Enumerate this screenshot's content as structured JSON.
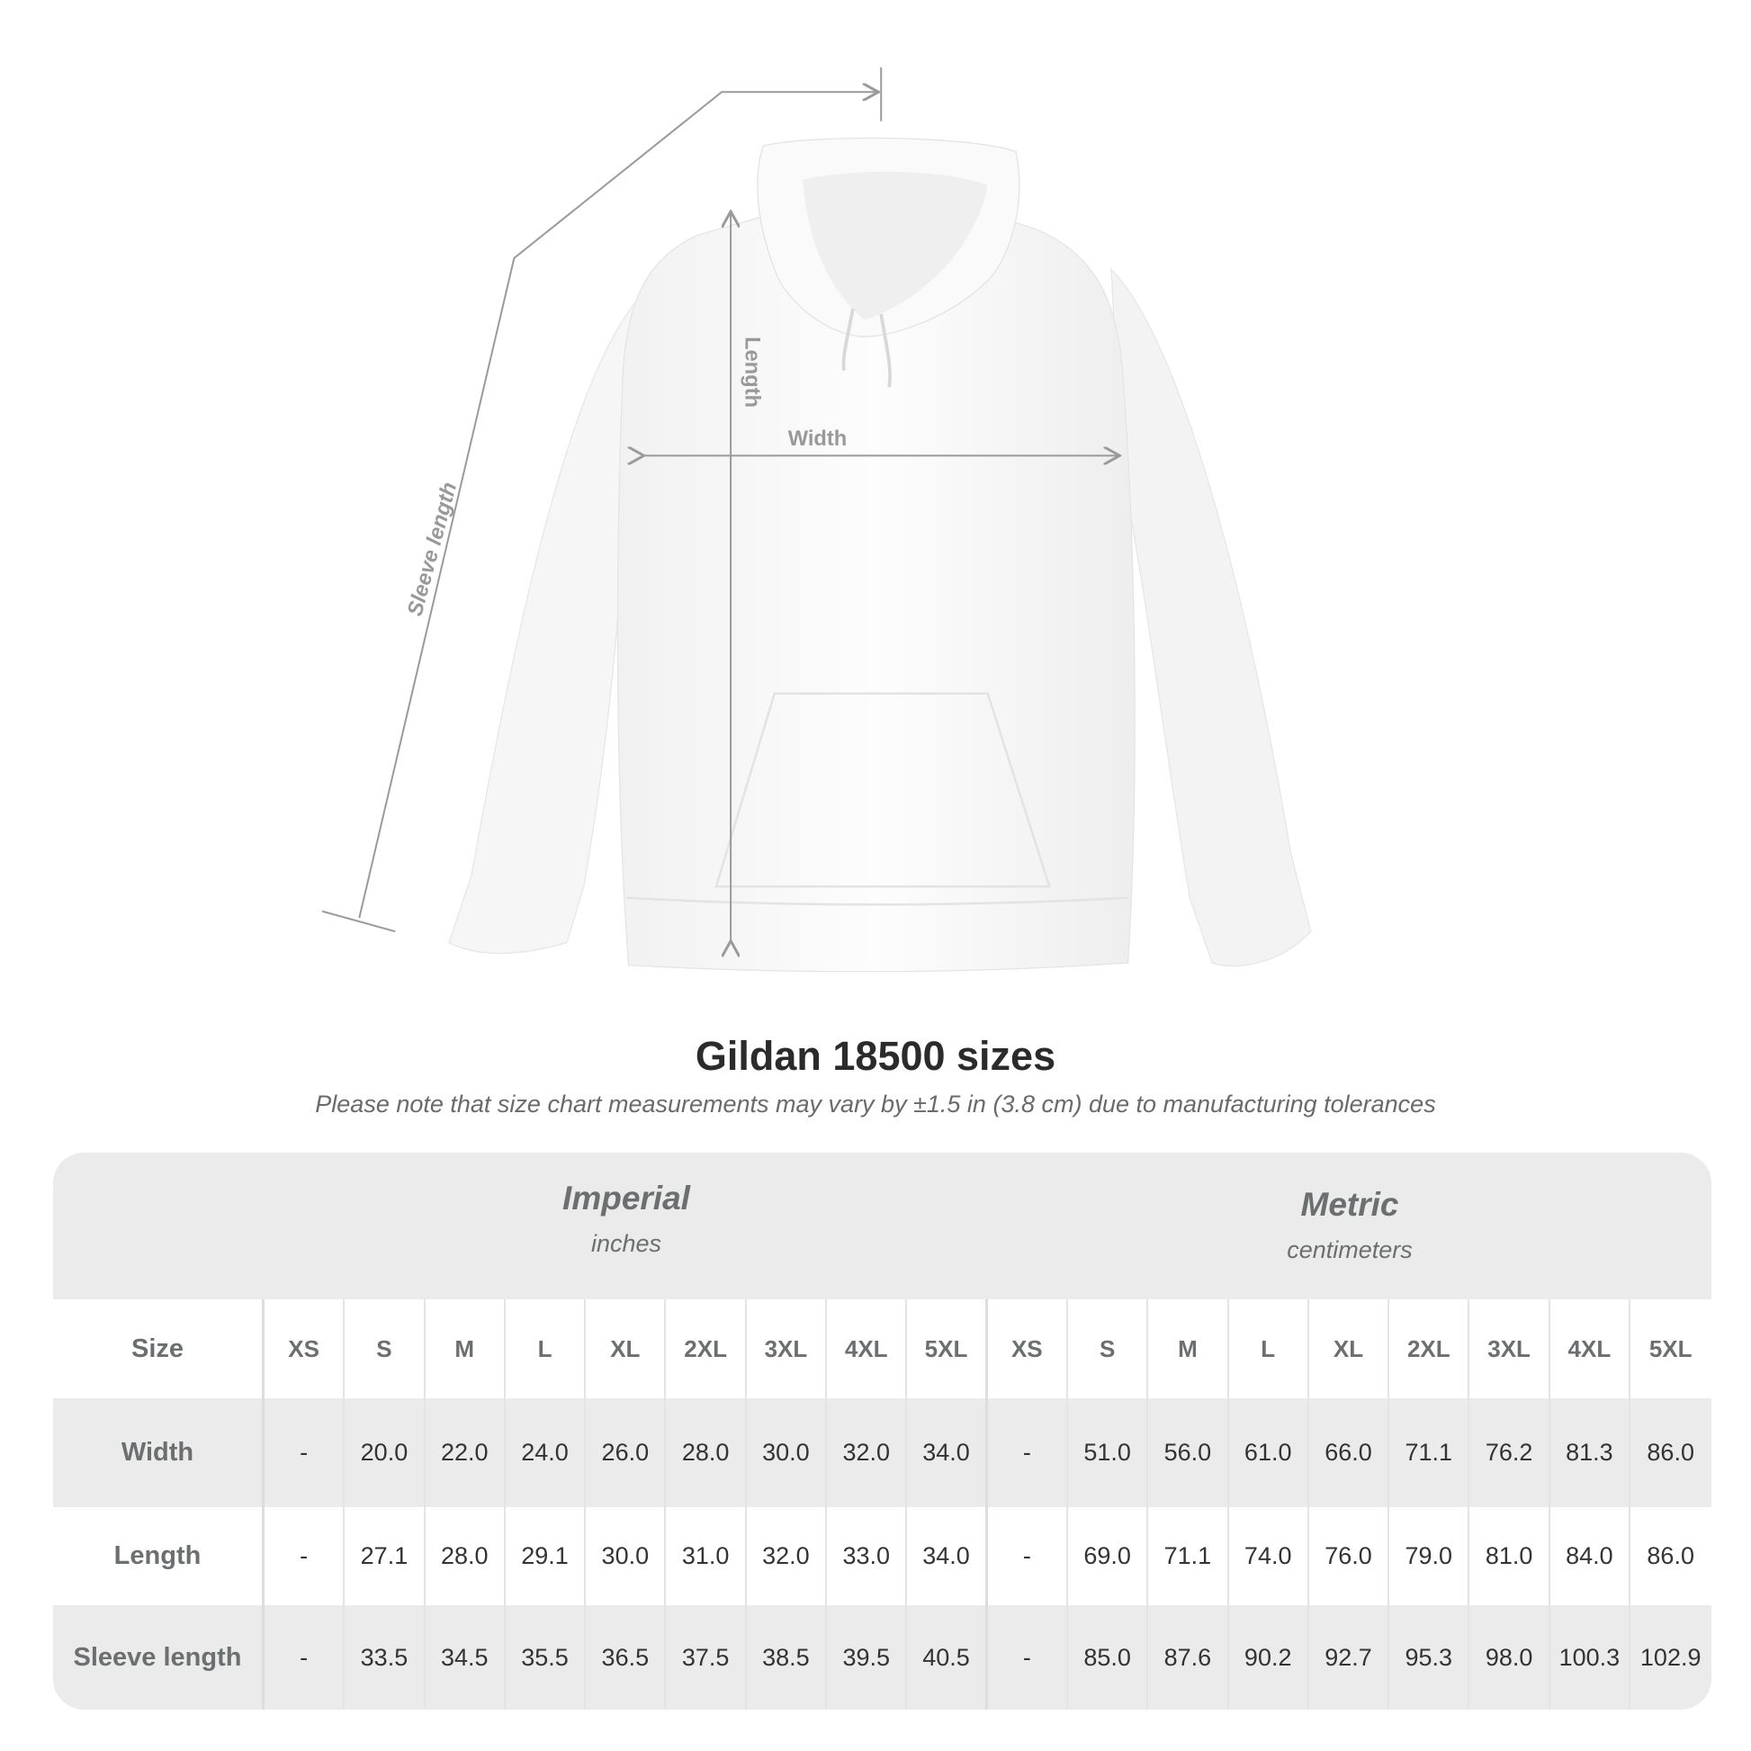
{
  "diagram": {
    "labels": {
      "length": "Length",
      "width": "Width",
      "sleeve": "Sleeve length"
    },
    "line_color": "#9a9a9a"
  },
  "title": "Gildan 18500 sizes",
  "note": "Please note that size chart measurements may vary by ±1.5 in (3.8 cm) due to manufacturing tolerances",
  "table": {
    "imperial": {
      "name": "Imperial",
      "unit": "inches"
    },
    "metric": {
      "name": "Metric",
      "unit": "centimeters"
    },
    "size_label": "Size",
    "sizes": [
      "XS",
      "S",
      "M",
      "L",
      "XL",
      "2XL",
      "3XL",
      "4XL",
      "5XL"
    ],
    "rows": [
      {
        "label": "Width",
        "imperial": [
          "-",
          "20.0",
          "22.0",
          "24.0",
          "26.0",
          "28.0",
          "30.0",
          "32.0",
          "34.0"
        ],
        "metric": [
          "-",
          "51.0",
          "56.0",
          "61.0",
          "66.0",
          "71.1",
          "76.2",
          "81.3",
          "86.0"
        ]
      },
      {
        "label": "Length",
        "imperial": [
          "-",
          "27.1",
          "28.0",
          "29.1",
          "30.0",
          "31.0",
          "32.0",
          "33.0",
          "34.0"
        ],
        "metric": [
          "-",
          "69.0",
          "71.1",
          "74.0",
          "76.0",
          "79.0",
          "81.0",
          "84.0",
          "86.0"
        ]
      },
      {
        "label": "Sleeve length",
        "imperial": [
          "-",
          "33.5",
          "34.5",
          "35.5",
          "36.5",
          "37.5",
          "38.5",
          "39.5",
          "40.5"
        ],
        "metric": [
          "-",
          "85.0",
          "87.6",
          "90.2",
          "92.7",
          "95.3",
          "98.0",
          "100.3",
          "102.9"
        ]
      }
    ],
    "colors": {
      "band": "#ebebeb",
      "header_text": "#6b6f70",
      "value_text": "#333333"
    }
  }
}
